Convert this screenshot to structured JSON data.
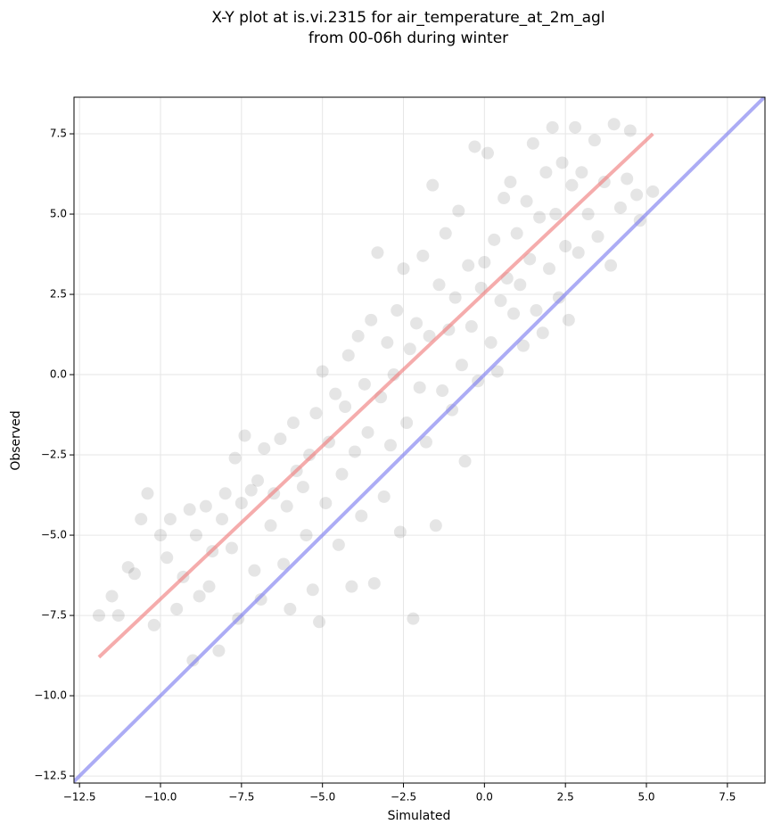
{
  "chart_data": {
    "type": "scatter",
    "title": [
      "X-Y plot at is.vi.2315 for air_temperature_at_2m_agl",
      "from 00-06h during winter"
    ],
    "xlabel": "Simulated",
    "ylabel": "Observed",
    "xlim": [
      -12.67,
      8.66
    ],
    "ylim": [
      -12.72,
      8.64
    ],
    "xticks": [
      {
        "value": -12.5,
        "label": "−12.5"
      },
      {
        "value": -10,
        "label": "−10.0"
      },
      {
        "value": -7.5,
        "label": "−7.5"
      },
      {
        "value": -5,
        "label": "−5.0"
      },
      {
        "value": -2.5,
        "label": "−2.5"
      },
      {
        "value": 0,
        "label": "0.0"
      },
      2.5,
      {
        "value": 5,
        "label": "5.0"
      },
      {
        "value": 7.5,
        "label": "7.5"
      }
    ],
    "yticks": [
      {
        "value": -12.5,
        "label": "−12.5"
      },
      {
        "value": -10,
        "label": "−10.0"
      },
      {
        "value": -7.5,
        "label": "−7.5"
      },
      {
        "value": -5,
        "label": "−5.0"
      },
      {
        "value": -2.5,
        "label": "−2.5"
      },
      {
        "value": 0,
        "label": "0.0"
      },
      2.5,
      {
        "value": 5,
        "label": "5.0"
      },
      {
        "value": 7.5,
        "label": "7.5"
      }
    ],
    "grid": true,
    "color": "#000000",
    "x": [
      -11.9,
      -11.5,
      -11.3,
      -11.0,
      -10.8,
      -10.6,
      -10.4,
      -10.2,
      -10.0,
      -9.8,
      -9.7,
      -9.5,
      -9.3,
      -9.1,
      -9.0,
      -8.9,
      -8.8,
      -8.6,
      -8.5,
      -8.4,
      -8.2,
      -8.1,
      -8.0,
      -7.8,
      -7.7,
      -7.6,
      -7.5,
      -7.4,
      -7.2,
      -7.1,
      -7.0,
      -6.9,
      -6.8,
      -6.6,
      -6.5,
      -6.3,
      -6.2,
      -6.1,
      -6.0,
      -5.9,
      -5.8,
      -5.6,
      -5.5,
      -5.4,
      -5.3,
      -5.2,
      -5.1,
      -5.0,
      -4.9,
      -4.8,
      -4.6,
      -4.5,
      -4.4,
      -4.3,
      -4.2,
      -4.1,
      -4.0,
      -3.9,
      -3.8,
      -3.7,
      -3.6,
      -3.5,
      -3.4,
      -3.3,
      -3.2,
      -3.1,
      -3.0,
      -2.9,
      -2.8,
      -2.7,
      -2.6,
      -2.5,
      -2.4,
      -2.3,
      -2.2,
      -2.1,
      -2.0,
      -1.9,
      -1.8,
      -1.7,
      -1.6,
      -1.5,
      -1.4,
      -1.3,
      -1.2,
      -1.1,
      -1.0,
      -0.9,
      -0.8,
      -0.7,
      -0.6,
      -0.5,
      -0.4,
      -0.3,
      -0.2,
      -0.1,
      0.0,
      0.1,
      0.2,
      0.3,
      0.4,
      0.5,
      0.6,
      0.7,
      0.8,
      0.9,
      1.0,
      1.1,
      1.2,
      1.3,
      1.4,
      1.5,
      1.6,
      1.7,
      1.8,
      1.9,
      2.0,
      2.1,
      2.2,
      2.3,
      2.4,
      2.5,
      2.6,
      2.7,
      2.8,
      2.9,
      3.0,
      3.2,
      3.4,
      3.5,
      3.7,
      3.9,
      4.0,
      4.2,
      4.4,
      4.5,
      4.7,
      4.8,
      5.2
    ],
    "values": [
      -7.5,
      -6.9,
      -7.5,
      -6.0,
      -6.2,
      -4.5,
      -3.7,
      -7.8,
      -5.0,
      -5.7,
      -4.5,
      -7.3,
      -6.3,
      -4.2,
      -8.9,
      -5.0,
      -6.9,
      -4.1,
      -6.6,
      -5.5,
      -8.6,
      -4.5,
      -3.7,
      -5.4,
      -2.6,
      -7.6,
      -4.0,
      -1.9,
      -3.6,
      -6.1,
      -3.3,
      -7.0,
      -2.3,
      -4.7,
      -3.7,
      -2.0,
      -5.9,
      -4.1,
      -7.3,
      -1.5,
      -3.0,
      -3.5,
      -5.0,
      -2.5,
      -6.7,
      -1.2,
      -7.7,
      0.1,
      -4.0,
      -2.1,
      -0.6,
      -5.3,
      -3.1,
      -1.0,
      0.6,
      -6.6,
      -2.4,
      1.2,
      -4.4,
      -0.3,
      -1.8,
      1.7,
      -6.5,
      3.8,
      -0.7,
      -3.8,
      1.0,
      -2.2,
      0.0,
      2.0,
      -4.9,
      3.3,
      -1.5,
      0.8,
      -7.6,
      1.6,
      -0.4,
      3.7,
      -2.1,
      1.2,
      5.9,
      -4.7,
      2.8,
      -0.5,
      4.4,
      1.4,
      -1.1,
      2.4,
      5.1,
      0.3,
      -2.7,
      3.4,
      1.5,
      7.1,
      -0.2,
      2.7,
      3.5,
      6.9,
      1.0,
      4.2,
      0.1,
      2.3,
      5.5,
      3.0,
      6.0,
      1.9,
      4.4,
      2.8,
      0.9,
      5.4,
      3.6,
      7.2,
      2.0,
      4.9,
      1.3,
      6.3,
      3.3,
      7.7,
      5.0,
      2.4,
      6.6,
      4.0,
      1.7,
      5.9,
      7.7,
      3.8,
      6.3,
      5.0,
      7.3,
      4.3,
      6.0,
      3.4,
      7.8,
      5.2,
      6.1,
      7.6,
      5.6,
      4.8,
      5.7
    ],
    "lines": [
      {
        "color": "#f08080",
        "x": [
          -11.9,
          5.2
        ],
        "values": [
          -8.8,
          7.5
        ]
      },
      {
        "color": "#8080f0",
        "x": [
          -12.67,
          8.66
        ],
        "values": [
          -12.67,
          8.66
        ]
      }
    ]
  }
}
